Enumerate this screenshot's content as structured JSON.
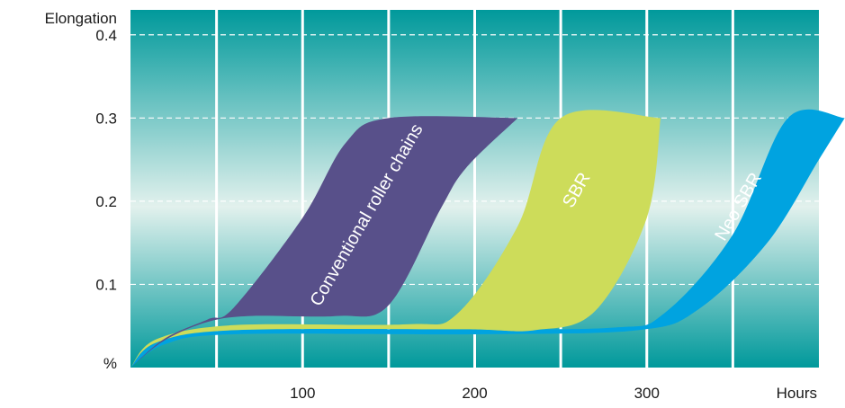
{
  "chart_data": {
    "type": "area",
    "title": "",
    "xlabel": "Hours",
    "ylabel": "Elongation",
    "y_unit": "%",
    "xlim": [
      0,
      400
    ],
    "ylim": [
      0,
      0.43
    ],
    "x_ticks": [
      100,
      200,
      300
    ],
    "x_tick_labels": [
      "100",
      "200",
      "300"
    ],
    "y_ticks": [
      0.1,
      0.2,
      0.3,
      0.4
    ],
    "y_tick_labels": [
      "0.1",
      "0.2",
      "0.3",
      "0.4"
    ],
    "grid": {
      "vertical_every": 50,
      "horizontal_dashed": [
        0.1,
        0.2,
        0.3,
        0.4
      ]
    },
    "series": [
      {
        "name": "Neo SBR",
        "color": "#00a3e0",
        "label_color": "#ffffff",
        "upper": [
          [
            0,
            0
          ],
          [
            15,
            0.03
          ],
          [
            60,
            0.045
          ],
          [
            180,
            0.046
          ],
          [
            280,
            0.048
          ],
          [
            310,
            0.065
          ],
          [
            350,
            0.16
          ],
          [
            382,
            0.3
          ],
          [
            415,
            0.3
          ]
        ],
        "lower": [
          [
            0,
            0
          ],
          [
            20,
            0.028
          ],
          [
            60,
            0.04
          ],
          [
            200,
            0.04
          ],
          [
            295,
            0.045
          ],
          [
            330,
            0.07
          ],
          [
            370,
            0.15
          ],
          [
            400,
            0.25
          ],
          [
            415,
            0.3
          ]
        ]
      },
      {
        "name": "SBR",
        "color": "#cddc5a",
        "label_color": "#1a1a1a",
        "upper": [
          [
            0,
            0
          ],
          [
            15,
            0.034
          ],
          [
            60,
            0.051
          ],
          [
            160,
            0.052
          ],
          [
            190,
            0.065
          ],
          [
            225,
            0.17
          ],
          [
            250,
            0.3
          ],
          [
            308,
            0.3
          ]
        ],
        "lower": [
          [
            0,
            0
          ],
          [
            15,
            0.03
          ],
          [
            60,
            0.045
          ],
          [
            190,
            0.046
          ],
          [
            235,
            0.045
          ],
          [
            270,
            0.068
          ],
          [
            300,
            0.18
          ],
          [
            308,
            0.3
          ]
        ]
      },
      {
        "name": "Conventional roller chains",
        "color": "#58508a",
        "label_color": "#ffffff",
        "upper": [
          [
            0,
            0
          ],
          [
            20,
            0.035
          ],
          [
            45,
            0.058
          ],
          [
            60,
            0.072
          ],
          [
            100,
            0.18
          ],
          [
            125,
            0.27
          ],
          [
            150,
            0.3
          ],
          [
            225,
            0.3
          ]
        ],
        "lower": [
          [
            0,
            0
          ],
          [
            20,
            0.033
          ],
          [
            45,
            0.055
          ],
          [
            70,
            0.062
          ],
          [
            120,
            0.062
          ],
          [
            150,
            0.075
          ],
          [
            180,
            0.19
          ],
          [
            195,
            0.24
          ],
          [
            225,
            0.3
          ]
        ]
      }
    ],
    "band_labels": [
      {
        "text": "Conventional roller chains",
        "x": 140,
        "y": 0.18,
        "angle": -60
      },
      {
        "text": "SBR",
        "x": 262,
        "y": 0.21,
        "angle": -60
      },
      {
        "text": "Neo SBR",
        "x": 356,
        "y": 0.19,
        "angle": -60
      }
    ],
    "background_gradient": [
      "#00999b",
      "#e2f1ed",
      "#00999b"
    ]
  }
}
